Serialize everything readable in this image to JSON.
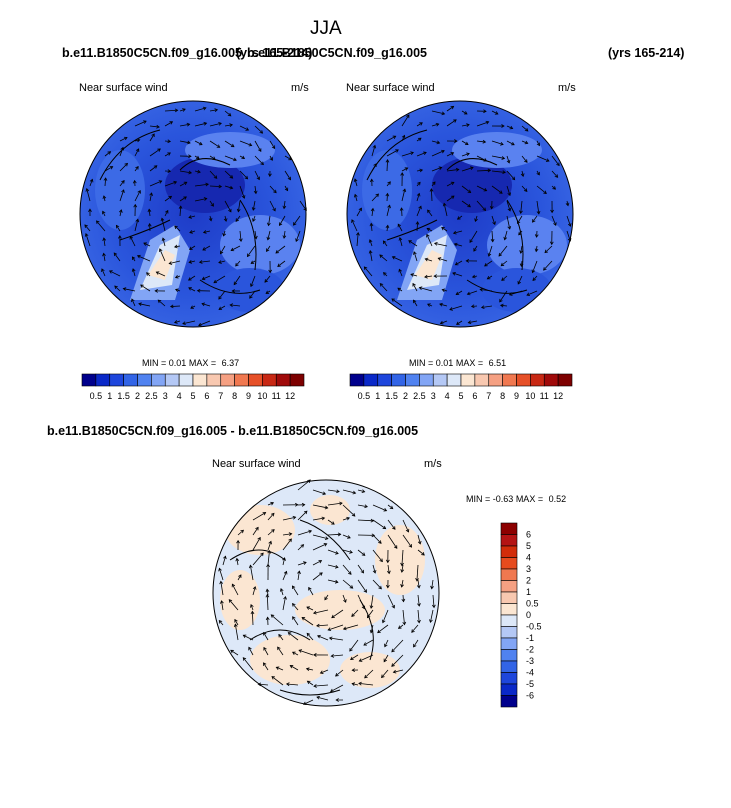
{
  "season": "JJA",
  "panels": [
    {
      "case": "b.e11.B1850C5CN.f09_g16.005",
      "years": "(yrs 165-214)",
      "variable": "Near surface wind",
      "units": "m/s",
      "min_label": "MIN =",
      "min": "0.01",
      "max_label": "MAX =",
      "max": "6.37"
    },
    {
      "case": "b.e11.B1850C5CN.f09_g16.005",
      "years": "(yrs 165-214)",
      "variable": "Near surface wind",
      "units": "m/s",
      "min_label": "MIN =",
      "min": "0.01",
      "max_label": "MAX =",
      "max": "6.51"
    }
  ],
  "diff_panel": {
    "title": "b.e11.B1850C5CN.f09_g16.005 - b.e11.B1850C5CN.f09_g16.005",
    "variable": "Near surface wind",
    "units": "m/s",
    "min_label": "MIN =",
    "min": "-0.63",
    "max_label": "MAX =",
    "max": "0.52"
  },
  "colorbar_wind": {
    "labels": [
      "0.5",
      "1",
      "1.5",
      "2",
      "2.5",
      "3",
      "4",
      "5",
      "6",
      "7",
      "8",
      "9",
      "10",
      "11",
      "12"
    ],
    "colors": [
      "#00008c",
      "#0a28c8",
      "#1e46dc",
      "#3264e6",
      "#5082f0",
      "#82a5f5",
      "#b4c8f5",
      "#dde8f8",
      "#fbe6d2",
      "#f8c8b0",
      "#f5a082",
      "#f07850",
      "#e65028",
      "#c82814",
      "#a00a0a",
      "#7d0000"
    ]
  },
  "colorbar_diff": {
    "labels": [
      "6",
      "5",
      "4",
      "3",
      "2",
      "1",
      "0.5",
      "0",
      "-0.5",
      "-1",
      "-2",
      "-3",
      "-4",
      "-5",
      "-6"
    ],
    "colors": [
      "#8c0000",
      "#b41414",
      "#d22d0a",
      "#e64b1e",
      "#f07850",
      "#f5a082",
      "#f8c8b0",
      "#fbe6d2",
      "#dde8f8",
      "#b4c8f5",
      "#82a5f5",
      "#5082f0",
      "#3264e6",
      "#1e46dc",
      "#0a28c8",
      "#00008c"
    ]
  }
}
